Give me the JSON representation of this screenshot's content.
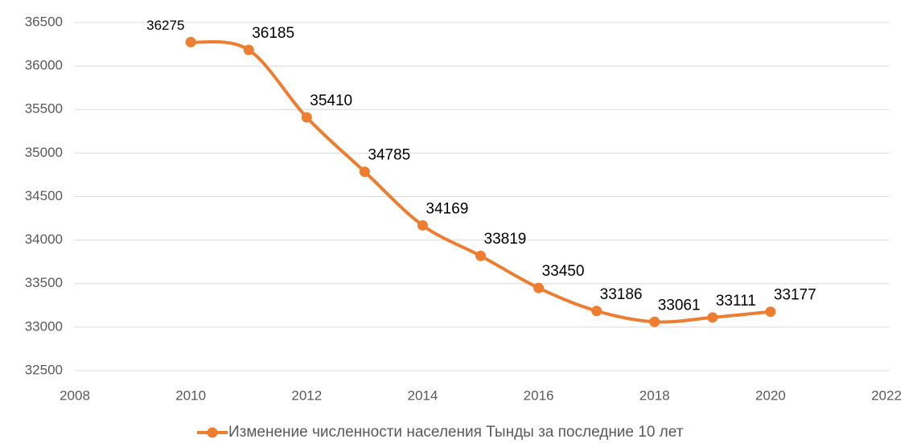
{
  "chart_data": {
    "type": "scatter",
    "x": [
      2010,
      2011,
      2012,
      2013,
      2014,
      2015,
      2016,
      2017,
      2018,
      2019,
      2020
    ],
    "series": [
      {
        "name": "Изменение численности населения Тынды за последние 10 лет",
        "color": "#ed7d31",
        "values": [
          36275,
          36185,
          35410,
          34785,
          34169,
          33819,
          33450,
          33186,
          33061,
          33111,
          33177
        ]
      }
    ],
    "xlim": [
      2008,
      2022
    ],
    "xticks": [
      2008,
      2010,
      2012,
      2014,
      2016,
      2018,
      2020,
      2022
    ],
    "ylim": [
      32500,
      36500
    ],
    "yticks": [
      32500,
      33000,
      33500,
      34000,
      34500,
      35000,
      35500,
      36000,
      36500
    ],
    "grid": true,
    "smooth": true,
    "legend": "bottom"
  }
}
